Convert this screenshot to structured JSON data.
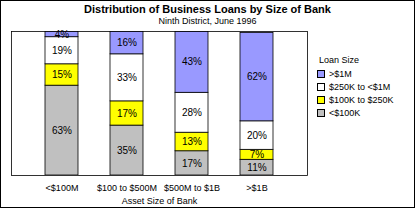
{
  "chart_data": {
    "type": "bar",
    "title": "Distribution of Business Loans by Size of Bank",
    "subtitle": "Ninth District, June 1996",
    "x_label": "Asset Size of Bank",
    "legend_title": "Loan Size",
    "categories": [
      "<$100M",
      "$100 to $500M",
      "$500M to $1B",
      ">$1B"
    ],
    "series": [
      {
        "name": "<$100K",
        "color": "#c0c0c0",
        "values": [
          63,
          35,
          17,
          11
        ],
        "value_labels": [
          "63%",
          "35%",
          "17%",
          "11%"
        ]
      },
      {
        "name": "$100K to $250K",
        "color": "#ffff00",
        "values": [
          15,
          17,
          13,
          7
        ],
        "value_labels": [
          "15%",
          "17%",
          "13%",
          "7%"
        ]
      },
      {
        "name": "$250K to <$1M",
        "color": "#ffffff",
        "values": [
          19,
          33,
          28,
          20
        ],
        "value_labels": [
          "19%",
          "33%",
          "28%",
          "20%"
        ]
      },
      {
        "name": ">$1M",
        "color": "#9999ff",
        "values": [
          4,
          16,
          43,
          62
        ],
        "value_labels": [
          "4%",
          "16%",
          "43%",
          "62%"
        ]
      }
    ],
    "ylim": [
      0,
      101
    ],
    "stacked": true,
    "data_labels": true,
    "tick_labels": "x",
    "legend": "right"
  }
}
